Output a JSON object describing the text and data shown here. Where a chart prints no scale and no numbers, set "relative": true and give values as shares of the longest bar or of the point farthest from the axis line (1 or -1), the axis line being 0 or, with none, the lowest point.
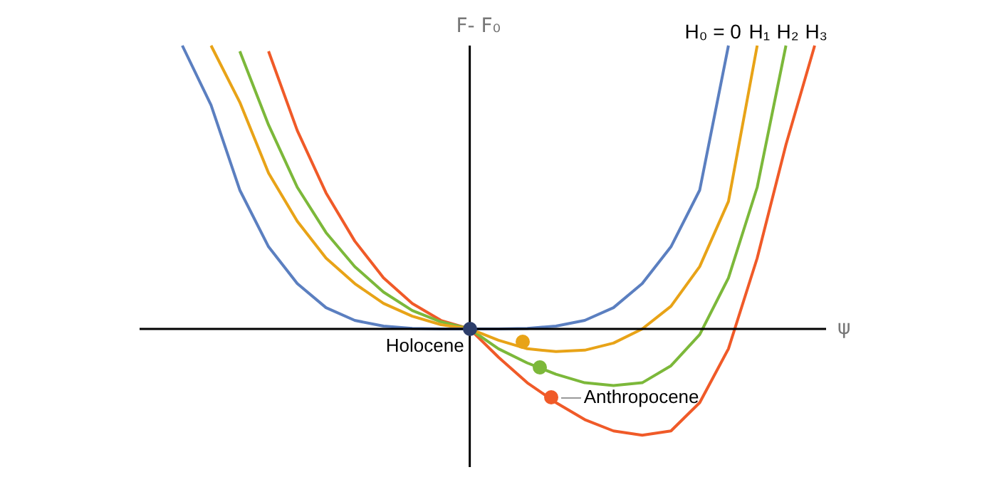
{
  "chart_data": {
    "type": "line",
    "relative": true,
    "xlabel": "ψ",
    "ylabel": "F- F₀",
    "legend": false,
    "categories": [
      null,
      null,
      null,
      null,
      null,
      null,
      null,
      null,
      null,
      null,
      null,
      null,
      null,
      null,
      null,
      null,
      null,
      null,
      null,
      null,
      null,
      null,
      null
    ],
    "series": [
      {
        "name": "H₀ = 0",
        "color": "#5b7fc0",
        "values": [
          1,
          0.79,
          0.49,
          0.29,
          0.16,
          0.075,
          0.03,
          0.01,
          0.002,
          0,
          0,
          0,
          0.002,
          0.01,
          0.03,
          0.075,
          0.16,
          0.29,
          0.49,
          1,
          null,
          null,
          null
        ]
      },
      {
        "name": "H₁",
        "color": "#e8a317",
        "values": [
          null,
          1,
          0.8,
          0.55,
          0.38,
          0.25,
          0.16,
          0.09,
          0.045,
          0.015,
          0,
          -0.04,
          -0.07,
          -0.08,
          -0.075,
          -0.05,
          0,
          0.08,
          0.22,
          0.45,
          1,
          null,
          null
        ]
      },
      {
        "name": "H₂",
        "color": "#7cb83a",
        "values": [
          null,
          null,
          0.98,
          0.72,
          0.5,
          0.34,
          0.22,
          0.13,
          0.065,
          0.025,
          0,
          -0.07,
          -0.12,
          -0.16,
          -0.19,
          -0.2,
          -0.19,
          -0.13,
          -0.02,
          0.18,
          0.5,
          1,
          null
        ]
      },
      {
        "name": "H₃",
        "color": "#f05a28",
        "values": [
          null,
          null,
          null,
          0.98,
          0.7,
          0.48,
          0.31,
          0.18,
          0.09,
          0.03,
          0,
          -0.1,
          -0.19,
          -0.26,
          -0.32,
          -0.36,
          -0.375,
          -0.36,
          -0.26,
          -0.07,
          0.25,
          0.65,
          1
        ]
      }
    ],
    "annotations": [
      "Holocene",
      "Anthropocene"
    ]
  }
}
